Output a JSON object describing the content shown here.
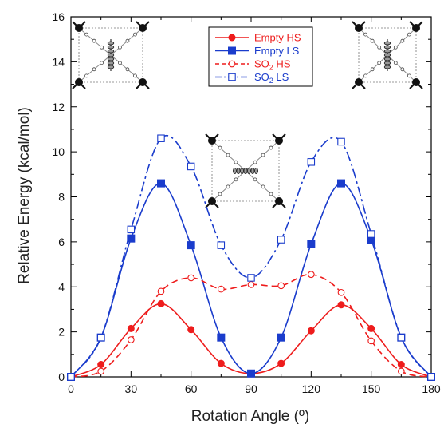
{
  "chart_data": {
    "type": "line",
    "xlabel": "Rotation Angle (º)",
    "ylabel": "Relative Energy (kcal/mol)",
    "xlim": [
      0,
      180
    ],
    "ylim": [
      0,
      16
    ],
    "xticks": [
      0,
      30,
      60,
      90,
      120,
      150,
      180
    ],
    "yticks": [
      0,
      2,
      4,
      6,
      8,
      10,
      12,
      14,
      16
    ],
    "grid": false,
    "legend_position": "top-center",
    "series": [
      {
        "name": "Empty HS",
        "color": "#ee1c1c",
        "marker": "filled-circle",
        "line": "solid",
        "x": [
          0,
          15,
          30,
          45,
          60,
          75,
          90,
          105,
          120,
          135,
          150,
          165,
          180
        ],
        "values": [
          0,
          0.55,
          2.15,
          3.25,
          2.1,
          0.6,
          0.15,
          0.6,
          2.05,
          3.2,
          2.15,
          0.55,
          0
        ]
      },
      {
        "name": "Empty LS",
        "color": "#1a3ccc",
        "marker": "filled-square",
        "line": "solid",
        "x": [
          0,
          15,
          30,
          45,
          60,
          75,
          90,
          105,
          120,
          135,
          150,
          165,
          180
        ],
        "values": [
          0,
          1.75,
          6.15,
          8.6,
          5.85,
          1.75,
          0.15,
          1.75,
          5.9,
          8.6,
          6.1,
          1.75,
          0
        ]
      },
      {
        "name": "SO2 HS",
        "color": "#ee1c1c",
        "marker": "open-circle",
        "line": "dashed",
        "x": [
          0,
          15,
          30,
          45,
          60,
          75,
          90,
          105,
          120,
          135,
          150,
          165,
          180
        ],
        "values": [
          0,
          0.25,
          1.65,
          3.8,
          4.4,
          3.9,
          4.1,
          4.05,
          4.55,
          3.75,
          1.6,
          0.25,
          0
        ]
      },
      {
        "name": "SO2 LS",
        "color": "#1a3ccc",
        "marker": "open-square",
        "line": "dash-dot",
        "x": [
          0,
          15,
          30,
          45,
          60,
          75,
          90,
          105,
          120,
          135,
          150,
          165,
          180
        ],
        "values": [
          0,
          1.75,
          6.55,
          10.6,
          9.35,
          5.85,
          4.4,
          6.1,
          9.55,
          10.45,
          6.35,
          1.75,
          0
        ]
      }
    ],
    "legend": [
      {
        "base": "Empty HS",
        "sub": "",
        "rest": ""
      },
      {
        "base": "Empty LS",
        "sub": "",
        "rest": ""
      },
      {
        "base": "SO",
        "sub": "2",
        "rest": " HS"
      },
      {
        "base": "SO",
        "sub": "2",
        "rest": " LS"
      }
    ],
    "insets": [
      {
        "name": "structure-0-degrees",
        "position": "top-left"
      },
      {
        "name": "structure-90-degrees",
        "position": "center"
      },
      {
        "name": "structure-180-degrees",
        "position": "top-right"
      }
    ]
  }
}
